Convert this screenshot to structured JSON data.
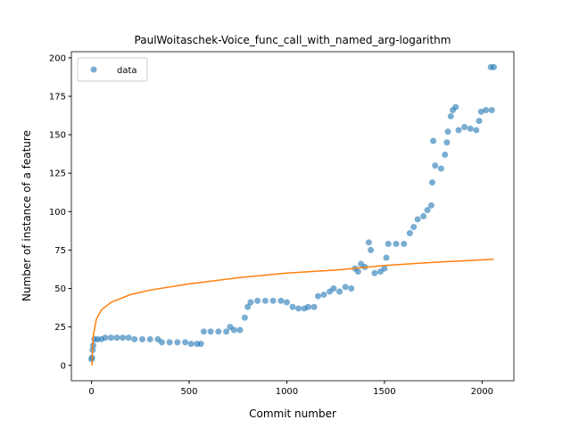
{
  "chart_data": {
    "type": "scatter",
    "title": "PaulWoitaschek-Voice_func_call_with_named_arg-logarithm",
    "x_label": "Commit number",
    "y_label": "Number of instance of a feature",
    "xlim": [
      -103,
      2163
    ],
    "ylim": [
      -10,
      204
    ],
    "xticks": [
      0,
      500,
      1000,
      1500,
      2000
    ],
    "yticks": [
      0,
      25,
      50,
      75,
      100,
      125,
      150,
      175,
      200
    ],
    "legend": "upper left",
    "series": [
      {
        "name": "data",
        "kind": "scatter",
        "color": "#1f77b4",
        "x": [
          0,
          3,
          6,
          9,
          15,
          30,
          50,
          70,
          100,
          130,
          160,
          190,
          220,
          260,
          300,
          340,
          360,
          400,
          440,
          480,
          510,
          540,
          560,
          575,
          610,
          650,
          690,
          710,
          730,
          760,
          785,
          800,
          815,
          850,
          890,
          930,
          970,
          1000,
          1030,
          1060,
          1090,
          1110,
          1140,
          1160,
          1190,
          1220,
          1240,
          1270,
          1300,
          1330,
          1350,
          1365,
          1380,
          1400,
          1420,
          1430,
          1450,
          1480,
          1500,
          1510,
          1520,
          1560,
          1600,
          1630,
          1650,
          1670,
          1700,
          1720,
          1740,
          1745,
          1750,
          1760,
          1790,
          1810,
          1820,
          1825,
          1840,
          1850,
          1865,
          1880,
          1910,
          1940,
          1970,
          1985,
          1995,
          2020,
          2050,
          2045,
          2060
        ],
        "values": [
          4,
          5,
          10,
          13,
          17,
          17,
          17,
          18,
          18,
          18,
          18,
          18,
          17,
          17,
          17,
          17,
          15,
          15,
          15,
          15,
          14,
          14,
          14,
          22,
          22,
          22,
          22,
          25,
          23,
          23,
          31,
          38,
          41,
          42,
          42,
          42,
          42,
          41,
          38,
          37,
          37,
          38,
          38,
          45,
          46,
          48,
          50,
          48,
          51,
          50,
          63,
          61,
          66,
          64,
          80,
          75,
          60,
          61,
          63,
          70,
          79,
          79,
          79,
          86,
          90,
          95,
          97,
          101,
          104,
          119,
          146,
          130,
          128,
          137,
          145,
          152,
          162,
          166,
          168,
          153,
          155,
          154,
          153,
          159,
          165,
          166,
          166,
          194,
          194
        ]
      },
      {
        "kind": "line",
        "color": "#ff7f0e",
        "x": [
          3,
          5,
          10,
          25,
          50,
          100,
          200,
          300,
          500,
          750,
          1000,
          1250,
          1500,
          1750,
          2060
        ],
        "values": [
          0,
          10,
          20,
          30,
          36,
          41,
          46,
          49,
          53,
          57,
          60,
          62,
          65,
          67,
          69
        ]
      }
    ]
  }
}
